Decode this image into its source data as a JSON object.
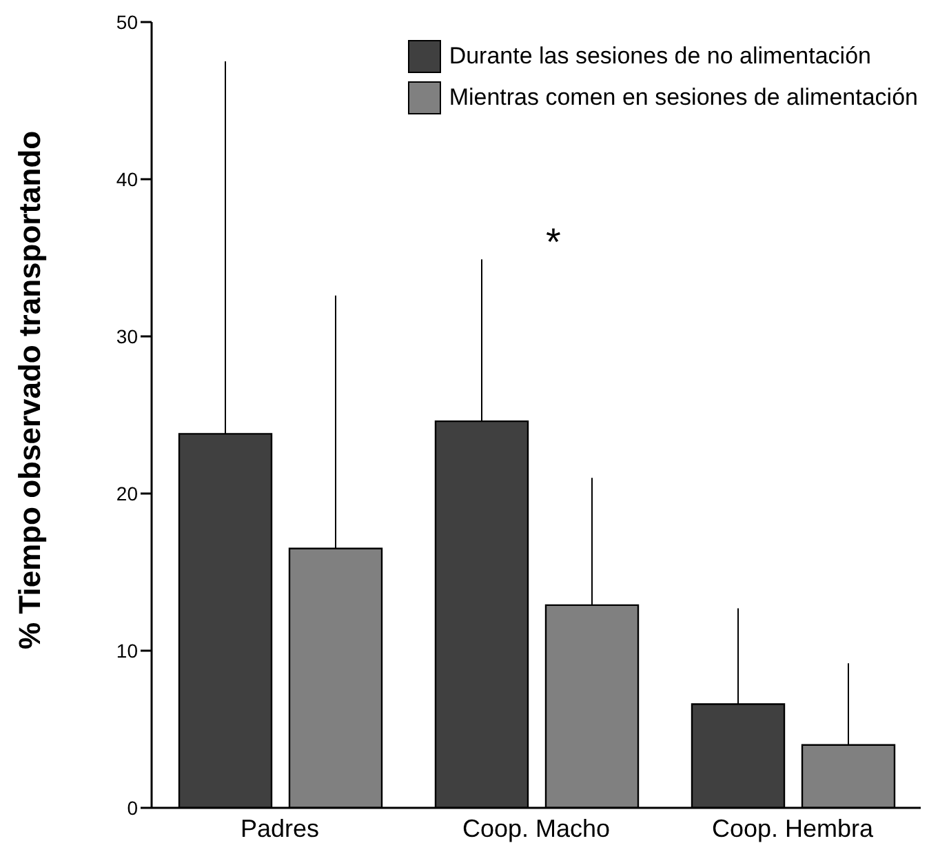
{
  "chart_data": {
    "type": "bar",
    "ylabel": "% Tiempo observado transportando",
    "categories": [
      "Padres",
      "Coop. Macho",
      "Coop. Hembra"
    ],
    "series": [
      {
        "name": "Durante las sesiones de no alimentación",
        "color": "#404040",
        "values": [
          23.8,
          24.6,
          6.6
        ],
        "errors": [
          [
            23.8,
            47.5
          ],
          [
            24.6,
            34.9
          ],
          [
            6.6,
            12.7
          ]
        ]
      },
      {
        "name": "Mientras comen en sesiones de alimentación",
        "color": "#808080",
        "values": [
          16.5,
          12.9,
          4.0
        ],
        "errors": [
          [
            16.5,
            32.6
          ],
          [
            12.9,
            21.0
          ],
          [
            4.0,
            9.2
          ]
        ]
      }
    ],
    "ylim": [
      0,
      50
    ],
    "yticks": [
      0,
      10,
      20,
      30,
      40,
      50
    ],
    "grid": false,
    "legend": "top right",
    "annotations": [
      "*"
    ]
  }
}
